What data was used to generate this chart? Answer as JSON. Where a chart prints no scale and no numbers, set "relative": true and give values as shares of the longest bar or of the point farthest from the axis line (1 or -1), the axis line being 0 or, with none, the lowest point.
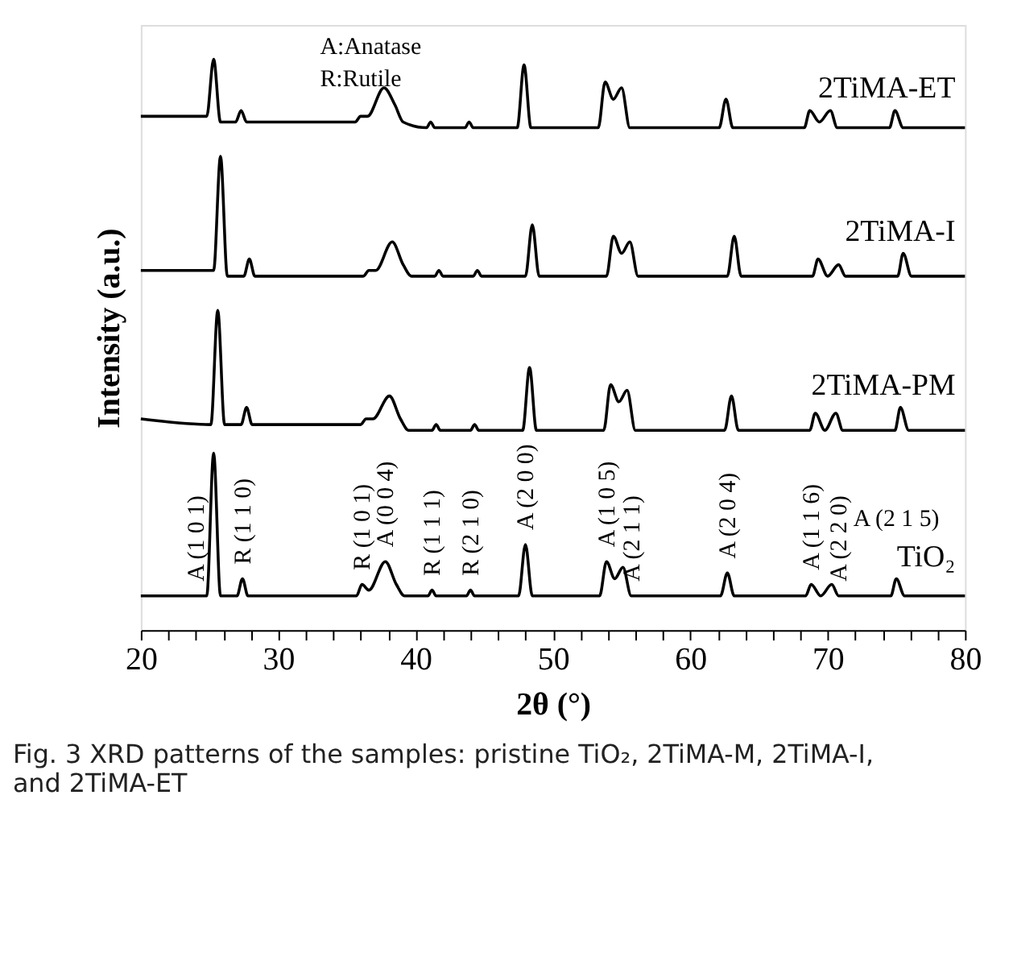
{
  "chart_data": {
    "type": "line",
    "relative": true,
    "title": "Fig. 3 XRD patterns of the samples: pristine TiO₂, 2TiMA-M, 2TiMA-I, and 2TiMA-ET",
    "xlabel": "2θ (°)",
    "ylabel": "Intensity (a.u.)",
    "xlim": [
      20,
      80
    ],
    "xticks": [
      20,
      {
        "value": 22,
        "label": null
      },
      {
        "value": 24,
        "label": null
      },
      {
        "value": 26,
        "label": null
      },
      {
        "value": 28,
        "label": null
      },
      30,
      {
        "value": 32,
        "label": null
      },
      {
        "value": 34,
        "label": null
      },
      {
        "value": 36,
        "label": null
      },
      {
        "value": 38,
        "label": null
      },
      40,
      {
        "value": 42,
        "label": null
      },
      {
        "value": 44,
        "label": null
      },
      {
        "value": 46,
        "label": null
      },
      {
        "value": 48,
        "label": null
      },
      50,
      {
        "value": 52,
        "label": null
      },
      {
        "value": 54,
        "label": null
      },
      {
        "value": 56,
        "label": null
      },
      {
        "value": 58,
        "label": null
      },
      60,
      {
        "value": 62,
        "label": null
      },
      {
        "value": 64,
        "label": null
      },
      {
        "value": 66,
        "label": null
      },
      {
        "value": 68,
        "label": null
      },
      70,
      {
        "value": 72,
        "label": null
      },
      {
        "value": 74,
        "label": null
      },
      {
        "value": 76,
        "label": null
      },
      {
        "value": 78,
        "label": null
      },
      80
    ],
    "grid": false,
    "marker": "none",
    "line_style": "solid",
    "series": [
      {
        "name": "2TiMA-ET",
        "color": "#000000",
        "x": [
          20,
          24.8,
          25.3,
          25.8,
          26.9,
          27.3,
          27.7,
          35.6,
          36.0,
          36.5,
          37.7,
          38.5,
          39.1,
          40.8,
          41.1,
          41.4,
          43.6,
          43.9,
          44.2,
          47.4,
          47.9,
          48.4,
          53.3,
          53.8,
          54.4,
          55.0,
          55.6,
          62.1,
          62.6,
          63.1,
          68.3,
          68.7,
          69.4,
          70.2,
          70.7,
          74.5,
          74.9,
          75.5,
          80
        ],
        "values": [
          0.9,
          0.9,
          1.0,
          0.89,
          0.89,
          0.91,
          0.89,
          0.89,
          0.9,
          0.9,
          0.95,
          0.92,
          0.89,
          0.88,
          0.89,
          0.88,
          0.88,
          0.89,
          0.88,
          0.88,
          0.99,
          0.88,
          0.88,
          0.96,
          0.93,
          0.95,
          0.88,
          0.88,
          0.93,
          0.88,
          0.88,
          0.91,
          0.89,
          0.91,
          0.88,
          0.88,
          0.91,
          0.88,
          0.88
        ]
      },
      {
        "name": "2TiMA-I",
        "color": "#000000",
        "x": [
          20,
          25.3,
          25.8,
          26.3,
          27.5,
          27.9,
          28.3,
          36.2,
          36.6,
          37.1,
          38.3,
          39.1,
          39.7,
          41.4,
          41.7,
          42.0,
          44.2,
          44.5,
          44.8,
          48.0,
          48.5,
          49.0,
          53.9,
          54.4,
          55.0,
          55.6,
          56.2,
          62.7,
          63.2,
          63.7,
          68.9,
          69.3,
          70.0,
          70.8,
          71.3,
          75.1,
          75.5,
          76.1,
          80
        ],
        "values": [
          0.63,
          0.63,
          0.83,
          0.62,
          0.62,
          0.65,
          0.62,
          0.62,
          0.63,
          0.63,
          0.68,
          0.64,
          0.62,
          0.62,
          0.63,
          0.62,
          0.62,
          0.63,
          0.62,
          0.62,
          0.71,
          0.62,
          0.62,
          0.69,
          0.66,
          0.68,
          0.62,
          0.62,
          0.69,
          0.62,
          0.62,
          0.65,
          0.62,
          0.64,
          0.62,
          0.62,
          0.66,
          0.62,
          0.62
        ]
      },
      {
        "name": "2TiMA-PM",
        "color": "#000000",
        "x": [
          20,
          25.1,
          25.6,
          26.1,
          27.3,
          27.7,
          28.1,
          36.0,
          36.4,
          36.9,
          38.1,
          38.9,
          39.5,
          41.2,
          41.5,
          41.8,
          44.0,
          44.3,
          44.6,
          47.8,
          48.3,
          48.8,
          53.7,
          54.2,
          54.8,
          55.4,
          56.0,
          62.5,
          63.0,
          63.5,
          68.7,
          69.1,
          69.8,
          70.6,
          71.1,
          74.9,
          75.3,
          75.9,
          80
        ],
        "values": [
          0.37,
          0.36,
          0.56,
          0.36,
          0.36,
          0.39,
          0.36,
          0.36,
          0.37,
          0.37,
          0.41,
          0.37,
          0.35,
          0.35,
          0.36,
          0.35,
          0.35,
          0.36,
          0.35,
          0.35,
          0.46,
          0.35,
          0.35,
          0.43,
          0.4,
          0.42,
          0.35,
          0.35,
          0.41,
          0.35,
          0.35,
          0.38,
          0.35,
          0.38,
          0.35,
          0.35,
          0.39,
          0.35,
          0.35
        ]
      },
      {
        "name": "TiO₂",
        "color": "#000000",
        "x": [
          20,
          24.8,
          25.3,
          25.8,
          27.0,
          27.4,
          27.8,
          35.7,
          36.1,
          36.6,
          37.8,
          38.6,
          39.2,
          40.9,
          41.2,
          41.5,
          43.7,
          44.0,
          44.3,
          47.5,
          48.0,
          48.5,
          53.4,
          53.9,
          54.5,
          55.1,
          55.7,
          62.2,
          62.7,
          63.2,
          68.4,
          68.8,
          69.5,
          70.3,
          70.8,
          74.6,
          75.0,
          75.6,
          80
        ],
        "values": [
          0.06,
          0.06,
          0.31,
          0.06,
          0.06,
          0.09,
          0.06,
          0.06,
          0.08,
          0.07,
          0.12,
          0.08,
          0.06,
          0.06,
          0.07,
          0.06,
          0.06,
          0.07,
          0.06,
          0.06,
          0.15,
          0.06,
          0.06,
          0.12,
          0.09,
          0.11,
          0.06,
          0.06,
          0.1,
          0.06,
          0.06,
          0.08,
          0.06,
          0.08,
          0.06,
          0.06,
          0.09,
          0.06,
          0.06
        ]
      }
    ],
    "annotations": [
      "A:Anatase",
      "R:Rutile",
      {
        "text": "A (1 0 1)",
        "x": 24.0,
        "y": 0.06
      },
      {
        "text": "R (1 1 0)",
        "x": 27.4,
        "y": 0.09
      },
      {
        "text": "R (1 0 1)",
        "x": 36.1,
        "y": 0.08
      },
      {
        "text": "A (0 0 4)",
        "x": 37.8,
        "y": 0.12
      },
      {
        "text": "R (1 1 1)",
        "x": 41.2,
        "y": 0.07
      },
      {
        "text": "R (2 1 0)",
        "x": 44.0,
        "y": 0.07
      },
      {
        "text": "A (2 0 0)",
        "x": 48.0,
        "y": 0.15
      },
      {
        "text": "A (1 0 5)",
        "x": 53.9,
        "y": 0.12
      },
      {
        "text": "A (2 1 1)",
        "x": 55.7,
        "y": 0.06
      },
      {
        "text": "A (2 0 4)",
        "x": 62.7,
        "y": 0.1
      },
      {
        "text": "A (1 1 6)",
        "x": 68.8,
        "y": 0.08
      },
      {
        "text": "A (2 2 0)",
        "x": 70.8,
        "y": 0.06
      },
      {
        "text": "A (2 1 5)",
        "x": 75.0,
        "y": 0.09
      }
    ]
  }
}
